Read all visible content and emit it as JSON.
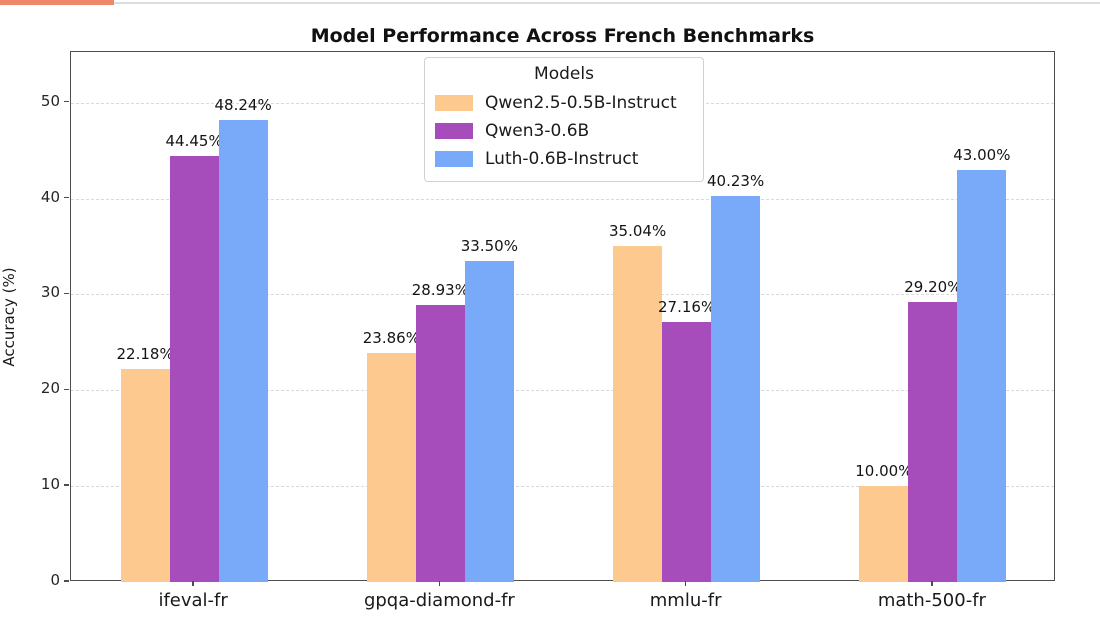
{
  "window": {
    "top_strip_accent_color": "#ee8768",
    "top_rule_color": "#d9dee3"
  },
  "chart_data": {
    "type": "bar",
    "title": "Model Performance Across French Benchmarks",
    "xlabel": "",
    "ylabel": "Accuracy (%)",
    "categories": [
      "ifeval-fr",
      "gpqa-diamond-fr",
      "mmlu-fr",
      "math-500-fr"
    ],
    "series": [
      {
        "name": "Qwen2.5-0.5B-Instruct",
        "color": "#fdc98e",
        "values": [
          22.18,
          23.86,
          35.04,
          10.0
        ],
        "labels": [
          "22.18%",
          "23.86%",
          "35.04%",
          "10.00%"
        ]
      },
      {
        "name": "Qwen3-0.6B",
        "color": "#a64cbb",
        "values": [
          44.45,
          28.93,
          27.16,
          29.2
        ],
        "labels": [
          "44.45%",
          "28.93%",
          "27.16%",
          "29.20%"
        ]
      },
      {
        "name": "Luth-0.6B-Instruct",
        "color": "#79aaf9",
        "values": [
          48.24,
          33.5,
          40.23,
          43.0
        ],
        "labels": [
          "48.24%",
          "33.50%",
          "40.23%",
          "43.00%"
        ]
      }
    ],
    "legend": {
      "title": "Models",
      "position": "upper center"
    },
    "yticks": [
      0,
      10,
      20,
      30,
      40,
      50
    ],
    "ylim": [
      0,
      55.3
    ],
    "grid": "horizontal dashed"
  }
}
